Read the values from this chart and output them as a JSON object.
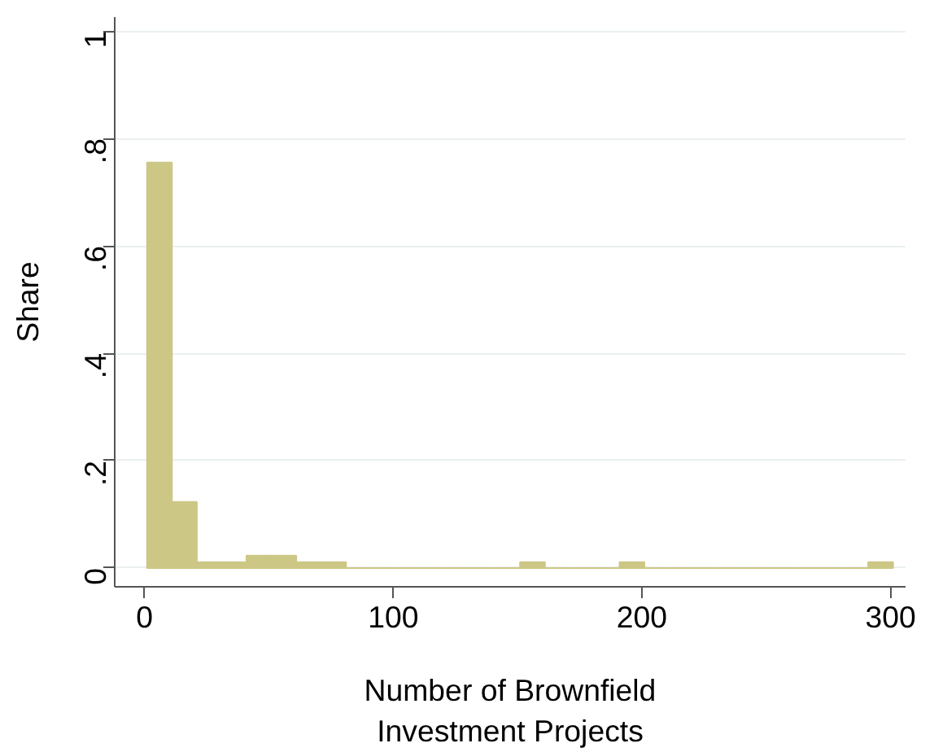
{
  "chart_data": {
    "type": "histogram",
    "xlabel": "Number of Brownfield\nInvestment Projects",
    "ylabel": "Share",
    "bins": [
      1,
      11,
      21,
      31,
      41,
      51,
      61,
      71,
      81,
      91,
      101,
      111,
      121,
      131,
      141,
      151,
      161,
      171,
      181,
      191,
      201,
      211,
      221,
      231,
      241,
      251,
      261,
      271,
      281,
      291,
      301
    ],
    "values": [
      0.755,
      0.123,
      0.011,
      0.011,
      0.023,
      0.023,
      0.011,
      0.011,
      0,
      0,
      0,
      0,
      0,
      0,
      0,
      0.011,
      0,
      0,
      0,
      0.011,
      0,
      0,
      0,
      0,
      0,
      0,
      0,
      0,
      0,
      0.011
    ],
    "color": "#cdc786",
    "xlim": [
      -12,
      306
    ],
    "xticks": [
      0,
      100,
      200,
      300
    ],
    "ylim": [
      -0.035,
      1.026
    ],
    "yticks": [
      0,
      {
        "value": 0.2,
        "label": ".2"
      },
      {
        "value": 0.4,
        "label": ".4"
      },
      {
        "value": 0.6,
        "label": ".6"
      },
      {
        "value": 0.8,
        "label": ".8"
      },
      1
    ],
    "grid": "y"
  }
}
